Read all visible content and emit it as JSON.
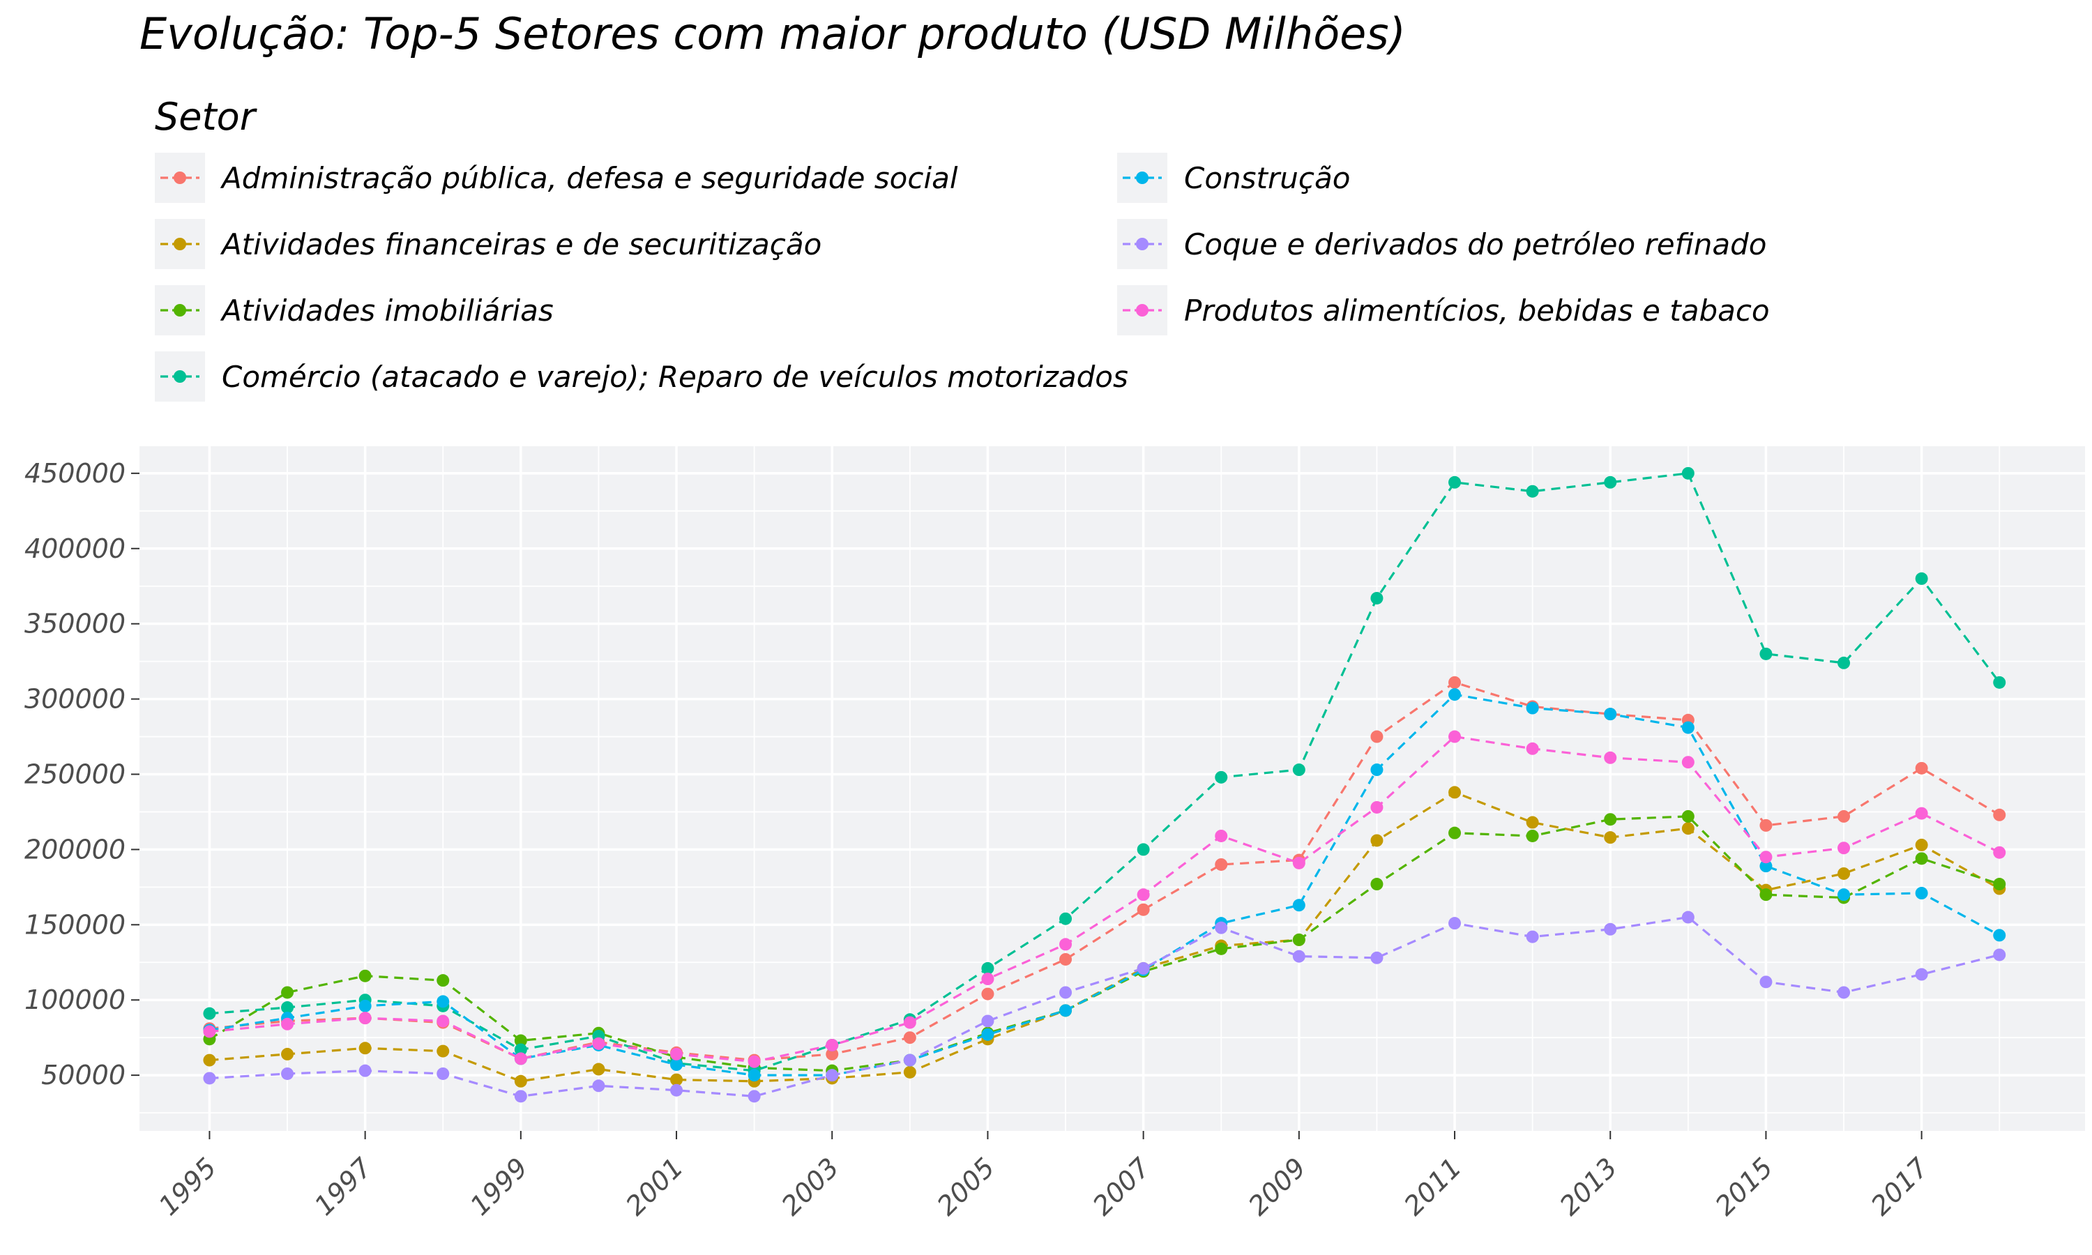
{
  "chart_data": {
    "type": "line",
    "title": "Evolução: Top-5 Setores com maior produto (USD Milhões)",
    "legend_title": "Setor",
    "legend_position": "top",
    "xlabel": "",
    "ylabel": "",
    "grid": true,
    "line_style": "dashed",
    "x": [
      1995,
      1996,
      1997,
      1998,
      1999,
      2000,
      2001,
      2002,
      2003,
      2004,
      2005,
      2006,
      2007,
      2008,
      2009,
      2010,
      2011,
      2012,
      2013,
      2014,
      2015,
      2016,
      2017,
      2018
    ],
    "xlim": [
      1994.1,
      2019.1
    ],
    "ylim": [
      13000,
      468000
    ],
    "x_ticks": [
      "1995",
      "1997",
      "1999",
      "2001",
      "2003",
      "2005",
      "2007",
      "2009",
      "2011",
      "2013",
      "2015",
      "2017"
    ],
    "y_ticks": [
      "50000",
      "100000",
      "150000",
      "200000",
      "250000",
      "300000",
      "350000",
      "400000",
      "450000"
    ],
    "series": [
      {
        "name": "Administração pública, defesa e seguridade social",
        "color": "#F8766D",
        "values": [
          81000,
          86000,
          88000,
          85000,
          61000,
          72000,
          65000,
          60000,
          64000,
          75000,
          104000,
          127000,
          160000,
          190000,
          193000,
          275000,
          311000,
          295000,
          290000,
          286000,
          216000,
          222000,
          254000,
          223000
        ]
      },
      {
        "name": "Atividades financeiras e de securitização",
        "color": "#C49A00",
        "values": [
          60000,
          64000,
          68000,
          66000,
          46000,
          54000,
          47000,
          46000,
          48000,
          52000,
          74000,
          93000,
          121000,
          136000,
          140000,
          206000,
          238000,
          218000,
          208000,
          214000,
          173000,
          184000,
          203000,
          174000
        ]
      },
      {
        "name": "Atividades imobiliárias",
        "color": "#53B400",
        "values": [
          74000,
          105000,
          116000,
          113000,
          73000,
          78000,
          62000,
          55000,
          53000,
          60000,
          78000,
          93000,
          119000,
          134000,
          140000,
          177000,
          211000,
          209000,
          220000,
          222000,
          170000,
          168000,
          194000,
          177000
        ]
      },
      {
        "name": "Comércio (atacado e varejo); Reparo de veículos motorizados",
        "color": "#00C094",
        "values": [
          91000,
          95000,
          100000,
          96000,
          67000,
          76000,
          58000,
          53000,
          70000,
          87000,
          121000,
          154000,
          200000,
          248000,
          253000,
          367000,
          444000,
          438000,
          444000,
          450000,
          330000,
          324000,
          380000,
          311000
        ]
      },
      {
        "name": "Construção",
        "color": "#00B6EB",
        "values": [
          80000,
          88000,
          96000,
          99000,
          61000,
          70000,
          57000,
          50000,
          50000,
          60000,
          77000,
          93000,
          120000,
          151000,
          163000,
          253000,
          303000,
          294000,
          290000,
          281000,
          189000,
          170000,
          171000,
          143000
        ]
      },
      {
        "name": "Coque e derivados do petróleo refinado",
        "color": "#A58AFF",
        "values": [
          48000,
          51000,
          53000,
          51000,
          36000,
          43000,
          40000,
          36000,
          50000,
          60000,
          86000,
          105000,
          121000,
          148000,
          129000,
          128000,
          151000,
          142000,
          147000,
          155000,
          112000,
          105000,
          117000,
          130000
        ]
      },
      {
        "name": "Produtos alimentícios, bebidas e tabaco",
        "color": "#FB61D7",
        "values": [
          79000,
          84000,
          88000,
          86000,
          61000,
          71000,
          64000,
          59000,
          70000,
          85000,
          114000,
          137000,
          170000,
          209000,
          191000,
          228000,
          275000,
          267000,
          261000,
          258000,
          195000,
          201000,
          224000,
          198000
        ]
      }
    ]
  }
}
